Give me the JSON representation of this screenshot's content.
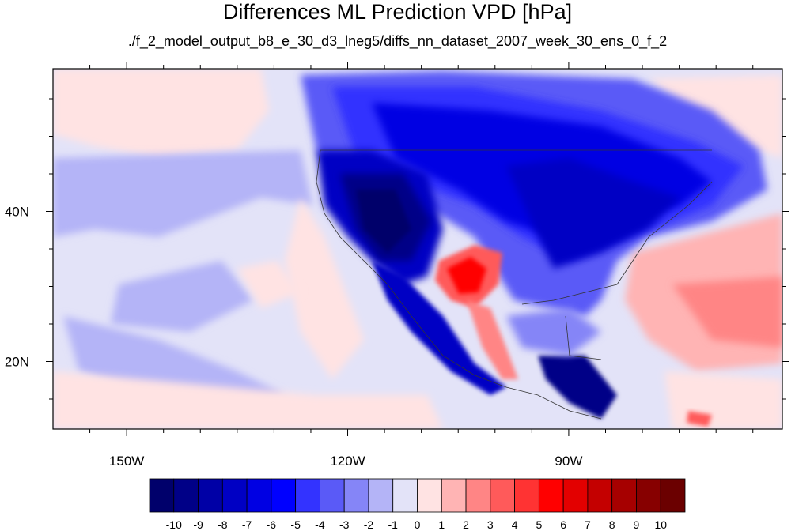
{
  "title": "Differences ML Prediction VPD [hPa]",
  "subtitle": "./f_2_model_output_b8_e_30_d3_lneg5/diffs_nn_dataset_2007_week_30_ens_0_f_2",
  "map": {
    "projection": "cylindrical-equidistant",
    "lon_range": [
      -160,
      -61
    ],
    "lat_range": [
      11,
      59
    ],
    "lon_ticks": [
      {
        "value": -150,
        "label": "150W"
      },
      {
        "value": -120,
        "label": "120W"
      },
      {
        "value": -90,
        "label": "90W"
      }
    ],
    "lat_ticks": [
      {
        "value": 40,
        "label": "40N"
      },
      {
        "value": 20,
        "label": "20N"
      }
    ]
  },
  "colorbar": {
    "labels": [
      "-10",
      "-9",
      "-8",
      "-7",
      "-6",
      "-5",
      "-4",
      "-3",
      "-2",
      "-1",
      "0",
      "1",
      "2",
      "3",
      "4",
      "5",
      "6",
      "7",
      "8",
      "9",
      "10"
    ],
    "colors": [
      "#00006b",
      "#000087",
      "#0000a6",
      "#0000c4",
      "#0000e3",
      "#0000ff",
      "#3333ff",
      "#5a5af7",
      "#8585f7",
      "#b4b4f7",
      "#e3e3f8",
      "#ffe3e3",
      "#ffb4b4",
      "#ff8585",
      "#ff5a5a",
      "#ff3333",
      "#ff0000",
      "#e30000",
      "#c40000",
      "#a60000",
      "#870000",
      "#6b0000"
    ]
  }
}
